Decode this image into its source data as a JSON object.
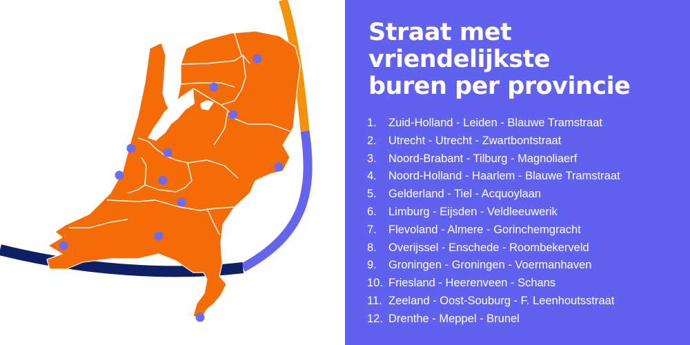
{
  "title_lines": [
    "Straat met",
    "vriendelijkste",
    "buren per provincie"
  ],
  "colors": {
    "panel": "#6161f0",
    "map_fill": "#f56b05",
    "marker": "#6b6bf5",
    "arc_orange": "#f5920a",
    "arc_purple": "#6464ee",
    "arc_navy": "#0f1f66"
  },
  "ranking": [
    {
      "rank": "1.",
      "text": "Zuid-Holland - Leiden - Blauwe Tramstraat"
    },
    {
      "rank": "2.",
      "text": "Utrecht - Utrecht - Zwartbontstraat"
    },
    {
      "rank": "3.",
      "text": "Noord-Brabant - Tilburg - Magnoliaerf"
    },
    {
      "rank": "4.",
      "text": "Noord-Holland - Haarlem - Blauwe Tramstraat"
    },
    {
      "rank": "5.",
      "text": "Gelderland - Tiel - Acquoylaan"
    },
    {
      "rank": "6.",
      "text": "Limburg - Eijsden - Veldleeuwerik"
    },
    {
      "rank": "7.",
      "text": "Flevoland - Almere - Gorinchemgracht"
    },
    {
      "rank": "8.",
      "text": "Overijssel - Enschede - Roombekerveld"
    },
    {
      "rank": "9.",
      "text": "Groningen - Groningen - Voermanhaven"
    },
    {
      "rank": "10.",
      "text": "Friesland - Heerenveen - Schans"
    },
    {
      "rank": "11.",
      "text": "Zeeland - Oost-Souburg - F. Leenhoutsstraat"
    },
    {
      "rank": "12.",
      "text": "Drenthe - Meppel - Brunel"
    }
  ],
  "markers": [
    "leiden",
    "utrecht",
    "tilburg",
    "haarlem",
    "tiel",
    "eijsden",
    "almere",
    "enschede",
    "groningen",
    "heerenveen",
    "oost-souburg",
    "meppel"
  ]
}
